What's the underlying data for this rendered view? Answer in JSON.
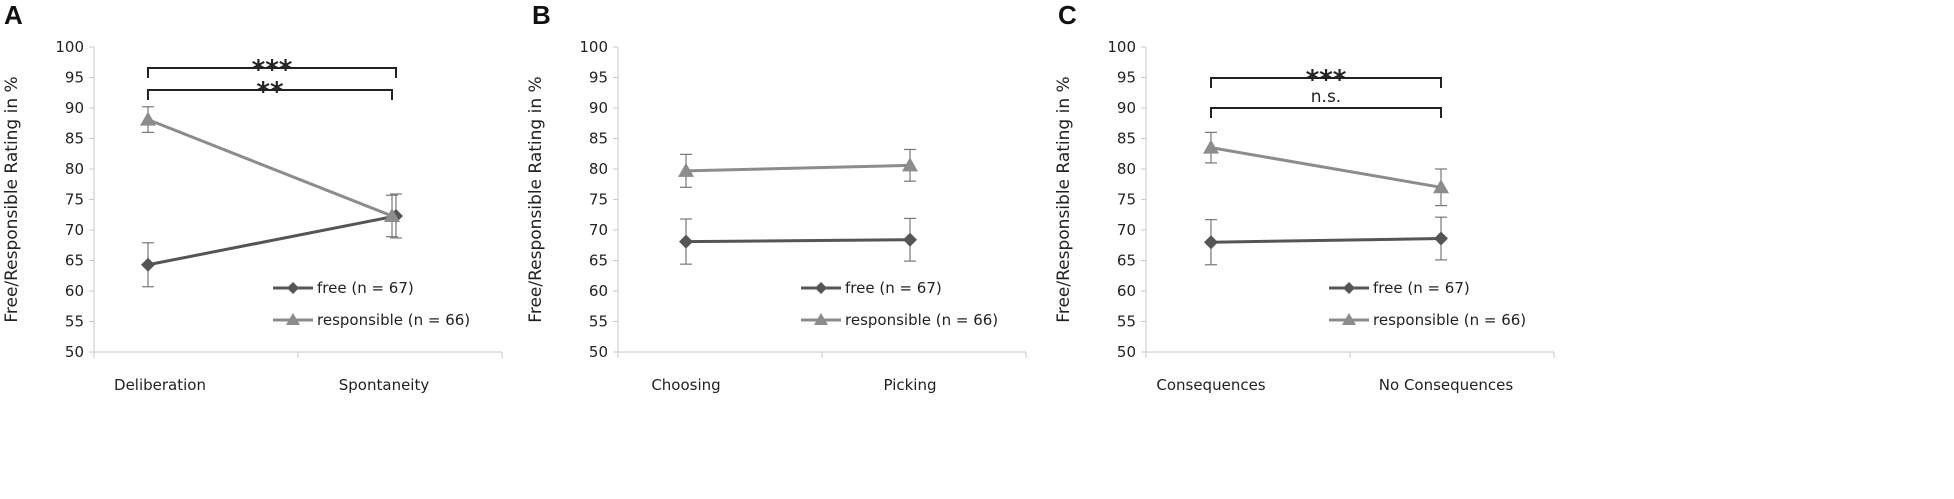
{
  "chart_data": [
    {
      "panel": "A",
      "type": "line",
      "ylabel": "Free/Responsible Rating in %",
      "ylim": [
        50,
        100
      ],
      "yticks": [
        50,
        55,
        60,
        65,
        70,
        75,
        80,
        85,
        90,
        95,
        100
      ],
      "categories": [
        "Deliberation",
        "Spontaneity"
      ],
      "series": [
        {
          "name": "free (n = 67)",
          "marker": "diamond",
          "color": "#555555",
          "values": [
            64.3,
            72.3
          ],
          "err": [
            3.6,
            3.6
          ]
        },
        {
          "name": "responsible (n = 66)",
          "marker": "triangle",
          "color": "#8c8c8c",
          "values": [
            88.1,
            72.3
          ],
          "err": [
            2.1,
            3.4
          ]
        }
      ],
      "brackets": [
        {
          "label": "***",
          "from": "responsible",
          "to": "free",
          "level": 1
        },
        {
          "label": "**",
          "from": "free",
          "to": "responsible",
          "level": 0
        }
      ],
      "legend_position": "bottom-right"
    },
    {
      "panel": "B",
      "type": "line",
      "ylabel": "Free/Responsible Rating in %",
      "ylim": [
        50,
        100
      ],
      "yticks": [
        50,
        55,
        60,
        65,
        70,
        75,
        80,
        85,
        90,
        95,
        100
      ],
      "categories": [
        "Choosing",
        "Picking"
      ],
      "series": [
        {
          "name": "free (n = 67)",
          "marker": "diamond",
          "color": "#555555",
          "values": [
            68.1,
            68.4
          ],
          "err": [
            3.7,
            3.5
          ]
        },
        {
          "name": "responsible (n = 66)",
          "marker": "triangle",
          "color": "#8c8c8c",
          "values": [
            79.7,
            80.6
          ],
          "err": [
            2.7,
            2.6
          ]
        }
      ],
      "brackets": [],
      "legend_position": "bottom-right"
    },
    {
      "panel": "C",
      "type": "line",
      "ylabel": "Free/Responsible Rating in %",
      "ylim": [
        50,
        100
      ],
      "yticks": [
        50,
        55,
        60,
        65,
        70,
        75,
        80,
        85,
        90,
        95,
        100
      ],
      "categories": [
        "Consequences",
        "No Consequences"
      ],
      "series": [
        {
          "name": "free (n = 67)",
          "marker": "diamond",
          "color": "#555555",
          "values": [
            68.0,
            68.6
          ],
          "err": [
            3.7,
            3.5
          ]
        },
        {
          "name": "responsible (n = 66)",
          "marker": "triangle",
          "color": "#8c8c8c",
          "values": [
            83.5,
            77.0
          ],
          "err": [
            2.5,
            3.0
          ]
        }
      ],
      "brackets": [
        {
          "label": "***",
          "from": "responsible",
          "to": "responsible",
          "level": 1
        },
        {
          "label": "n.s.",
          "from": "free",
          "to": "free",
          "level": 0
        }
      ],
      "legend_position": "bottom-right"
    }
  ]
}
